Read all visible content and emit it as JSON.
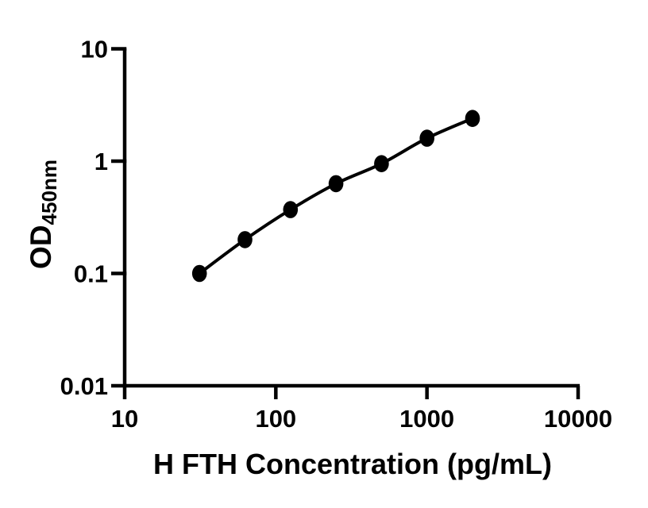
{
  "chart_data": {
    "type": "scatter",
    "subtype": "standard-curve-with-fit-line",
    "scale": "log-log",
    "title": "",
    "xlabel": "H FTH Concentration (pg/mL)",
    "ylabel_main": "OD",
    "ylabel_sub": "450nm",
    "x": [
      31.25,
      62.5,
      125,
      250,
      500,
      1000,
      2000
    ],
    "y": [
      0.1,
      0.2,
      0.37,
      0.63,
      0.95,
      1.6,
      2.4
    ],
    "xlim": [
      10,
      10000
    ],
    "ylim": [
      0.01,
      10
    ],
    "x_ticks": [
      10,
      100,
      1000,
      10000
    ],
    "x_tick_labels": [
      "10",
      "100",
      "1000",
      "10000"
    ],
    "y_ticks": [
      10,
      1,
      0.1,
      0.01
    ],
    "y_tick_labels": [
      "10",
      "1",
      "0.1",
      "0.01"
    ],
    "grid": false,
    "legend": false,
    "marker_shape": "filled-circle",
    "marker_color": "#000000",
    "line_color": "#000000",
    "axis_color": "#000000",
    "background": "#ffffff"
  }
}
